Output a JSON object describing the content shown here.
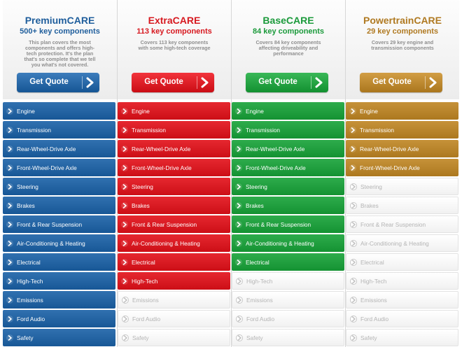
{
  "colors": {
    "premium": "#1f5f9e",
    "extra": "#d4161e",
    "base": "#1c9a3a",
    "powertrain": "#b48027",
    "premium_title": "#1f5e9c",
    "extra_title": "#d71920",
    "base_title": "#1b9a3b",
    "powertrain_title": "#b07a22"
  },
  "icons": {
    "row_bullet": "chevron-right-icon",
    "button_arrow": "chevron-right-icon"
  },
  "plans": [
    {
      "name": "PremiumCARE",
      "count": "500+ key components",
      "description": "This plan covers the most components and offers high-tech protection. It's the plan that's so complete that we tell you what's not covered.",
      "button": "Get Quote"
    },
    {
      "name": "ExtraCARE",
      "count": "113 key components",
      "description": "Covers 113 key components with some high-tech coverage",
      "button": "Get Quote"
    },
    {
      "name": "BaseCARE",
      "count": "84 key components",
      "description": "Covers 84 key components affecting driveability and performance",
      "button": "Get Quote"
    },
    {
      "name": "PowertrainCARE",
      "count": "29 key components",
      "description": "Covers 29 key engine and transmission components",
      "button": "Get Quote"
    }
  ],
  "components": [
    "Engine",
    "Transmission",
    "Rear-Wheel-Drive Axle",
    "Front-Wheel-Drive Axle",
    "Steering",
    "Brakes",
    "Front & Rear Suspension",
    "Air-Conditioning & Heating",
    "Electrical",
    "High-Tech",
    "Emissions",
    "Ford Audio",
    "Safety"
  ],
  "coverage": {
    "premium": 13,
    "extra": 10,
    "base": 9,
    "powertrain": 4
  }
}
